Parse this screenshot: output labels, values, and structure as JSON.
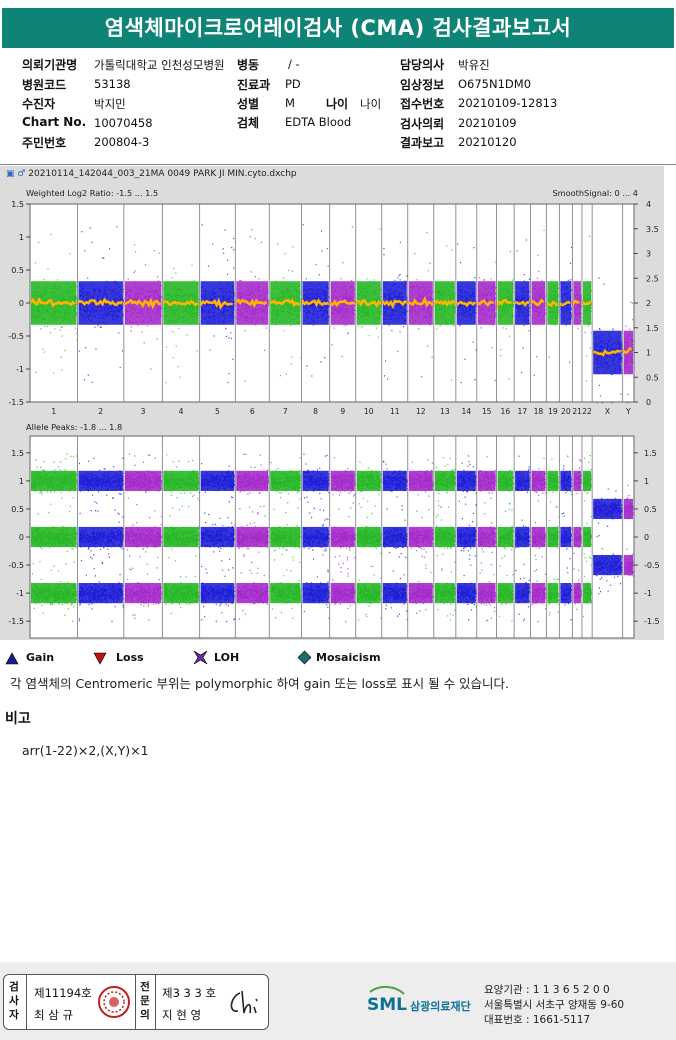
{
  "report": {
    "title": "염색체마이크로어레이검사 (CMA) 검사결과보고서"
  },
  "patient": {
    "hospital_label": "의뢰기관명",
    "hospital_value": "가톨릭대학교 인천성모병원",
    "ward_label": "병동",
    "ward_value": "/ -",
    "doctor_label": "담당의사",
    "doctor_value": "박유진",
    "code_label": "병원코드",
    "code_value": "53138",
    "dept_label": "진료과",
    "dept_value": "PD",
    "clinical_label": "임상정보",
    "clinical_value": "O675N1DM0",
    "name_label": "수진자",
    "name_value": "박지민",
    "sex_label": "성별",
    "sex_value": "M",
    "age_label": "나이",
    "age_value": "나이",
    "reception_label": "접수번호",
    "reception_value": "20210109-12813",
    "chart_label": "Chart No.",
    "chart_value": "10070458",
    "specimen_label": "검체",
    "specimen_value": "EDTA Blood",
    "request_label": "검사의뢰",
    "request_value": "20210109",
    "resident_label": "주민번호",
    "resident_value": "200804-3",
    "result_label": "결과보고",
    "result_value": "20210120"
  },
  "chart_data": [
    {
      "type": "scatter",
      "file_name": "20210114_142044_003_21MA 0049 PARK JI MIN.cyto.dxchp",
      "title": "Weighted Log2 Ratio: -1.5 ... 1.5",
      "right_title": "SmoothSignal: 0 ... 4",
      "ylim": [
        -1.5,
        1.5
      ],
      "y2lim": [
        0,
        4
      ],
      "yticks": [
        "1.5",
        "1",
        "0.5",
        "0",
        "-0.5",
        "-1",
        "-1.5"
      ],
      "y2ticks": [
        "4",
        "3.5",
        "3",
        "2.5",
        "2",
        "1.5",
        "1",
        "0.5",
        "0"
      ],
      "categories": [
        "1",
        "2",
        "3",
        "4",
        "5",
        "6",
        "7",
        "8",
        "9",
        "10",
        "11",
        "12",
        "13",
        "14",
        "15",
        "16",
        "17",
        "18",
        "19",
        "20",
        "21",
        "22",
        "X",
        "Y"
      ],
      "log2_center": [
        0,
        0,
        0,
        0,
        0,
        0,
        0,
        0,
        0,
        0,
        0,
        0,
        0,
        0,
        0,
        0,
        0,
        0,
        0,
        0,
        0,
        0,
        -0.75,
        -0.75
      ],
      "smooth_signal": [
        2,
        2,
        2,
        2,
        2,
        2,
        2,
        2,
        2,
        2,
        2,
        2,
        2,
        2,
        2,
        2,
        2,
        2,
        2,
        2,
        2,
        2,
        1,
        1
      ],
      "colors": [
        "#1bb41b",
        "#1414d6",
        "#a020c8"
      ],
      "smooth_color": "#ffb400"
    },
    {
      "type": "scatter",
      "title": "Allele Peaks: -1.8 ... 1.8",
      "ylim": [
        -1.8,
        1.8
      ],
      "yticks": [
        "1.5",
        "1",
        "0.5",
        "0",
        "-0.5",
        "-1",
        "-1.5"
      ],
      "y2ticks": [
        "1.5",
        "1",
        "0.5",
        "0",
        "-0.5",
        "-1",
        "-1.5"
      ],
      "peaks": [
        1,
        0,
        -1
      ],
      "peaks_x": [
        0.5,
        -0.5
      ]
    }
  ],
  "legend": {
    "gain": "Gain",
    "loss": "Loss",
    "loh": "LOH",
    "mosaicism": "Mosaicism",
    "gain_color": "#1a1a8a",
    "loss_color": "#c01010",
    "loh_color": "#6a2aa0",
    "mosaic_color": "#1e6e6e"
  },
  "note": "각 염색체의 Centromeric 부위는 polymorphic 하여 gain 또는 loss로 표시 될 수 있습니다.",
  "remarks": {
    "heading": "비고",
    "karyotype": "arr(1-22)×2,(X,Y)×1"
  },
  "signatures": {
    "inspector_label": "검사자",
    "inspector_no": "제11194호",
    "inspector_name": "최 삼 규",
    "specialist_label": "전문의",
    "specialist_no": "제3 3 3 호",
    "specialist_name": "지 현 영"
  },
  "organization": {
    "name": "삼광의료재단",
    "logo_text": "SML",
    "institution_no": "요양기관 : 1 1 3 6 5 2 0 0",
    "address": "서울특별시 서초구 양재동 9-60",
    "phone": "대표번호 : 1661-5117"
  }
}
